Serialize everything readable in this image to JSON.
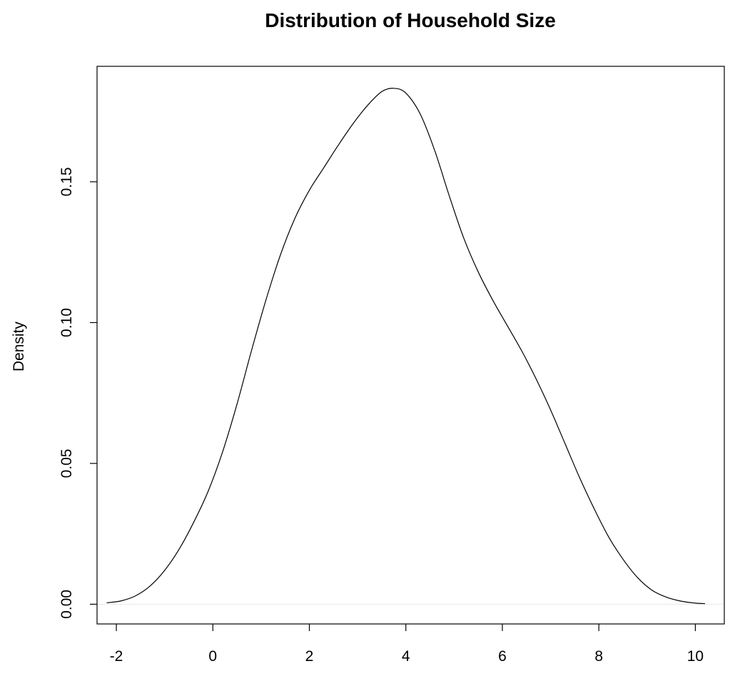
{
  "chart_data": {
    "type": "line",
    "title": "Distribution of Household Size",
    "xlabel": "",
    "ylabel": "Density",
    "xlim": [
      -2.4,
      10.6
    ],
    "ylim": [
      -0.007,
      0.191
    ],
    "x_ticks": [
      -2,
      0,
      2,
      4,
      6,
      8,
      10
    ],
    "y_ticks": [
      0.0,
      0.05,
      0.1,
      0.15
    ],
    "x_tick_labels": [
      "-2",
      "0",
      "2",
      "4",
      "6",
      "8",
      "10"
    ],
    "y_tick_labels": [
      "0.00",
      "0.05",
      "0.10",
      "0.15"
    ],
    "grid": false,
    "baseline": 0,
    "baseline_color": "#e8e8e8",
    "line_color": "#000000",
    "series": [
      {
        "x": [
          -2.2,
          -1.9,
          -1.6,
          -1.3,
          -1.0,
          -0.7,
          -0.4,
          -0.1,
          0.2,
          0.5,
          0.8,
          1.1,
          1.4,
          1.7,
          2.0,
          2.3,
          2.6,
          2.9,
          3.2,
          3.5,
          3.75,
          4.0,
          4.3,
          4.6,
          4.9,
          5.2,
          5.5,
          5.8,
          6.1,
          6.4,
          6.7,
          7.0,
          7.3,
          7.6,
          7.9,
          8.2,
          8.5,
          8.8,
          9.1,
          9.4,
          9.7,
          10.0,
          10.2
        ],
        "y": [
          0.0005,
          0.0012,
          0.003,
          0.0065,
          0.012,
          0.0195,
          0.029,
          0.04,
          0.054,
          0.071,
          0.09,
          0.108,
          0.124,
          0.137,
          0.147,
          0.155,
          0.163,
          0.1705,
          0.177,
          0.182,
          0.1832,
          0.1815,
          0.174,
          0.161,
          0.145,
          0.13,
          0.118,
          0.108,
          0.099,
          0.09,
          0.08,
          0.069,
          0.057,
          0.045,
          0.034,
          0.024,
          0.016,
          0.0095,
          0.005,
          0.0025,
          0.0011,
          0.0004,
          0.0002
        ]
      }
    ]
  }
}
